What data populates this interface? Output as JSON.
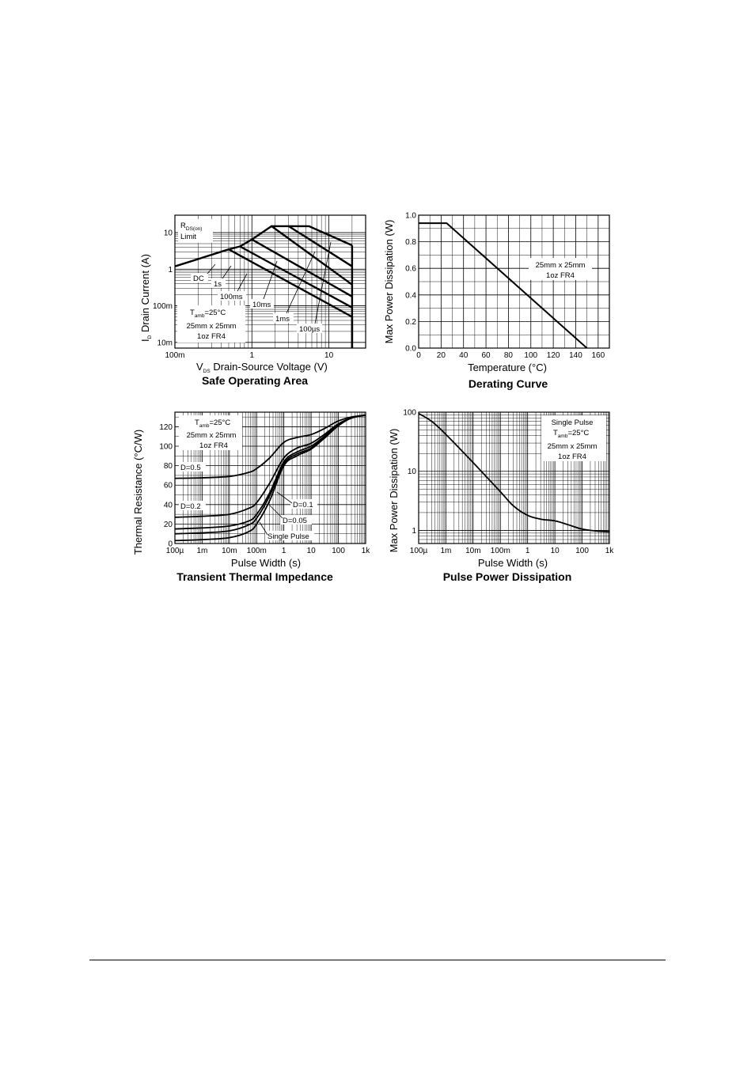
{
  "chart_data": [
    {
      "id": "soa",
      "type": "line",
      "title": "Safe Operating Area",
      "xlabel": {
        "pre": "V",
        "sub": "DS",
        "post": " Drain-Source Voltage (V)"
      },
      "ylabel": {
        "pre": "I",
        "sub": "D",
        "post": " Drain Current (A)"
      },
      "x_scale": "log",
      "y_scale": "log",
      "xlim": [
        0.1,
        30
      ],
      "ylim": [
        0.007,
        30
      ],
      "x_tick_values": [
        0.1,
        1,
        10
      ],
      "x_tick_labels": [
        "100m",
        "1",
        "10"
      ],
      "y_tick_values": [
        0.01,
        0.1,
        1,
        10
      ],
      "y_tick_labels": [
        "10m",
        "100m",
        "1",
        "10"
      ],
      "grid": true,
      "series": [
        {
          "name": "DC",
          "x": [
            0.1,
            0.5,
            20,
            20
          ],
          "y": [
            1.2,
            3.5,
            0.05,
            0.007
          ]
        },
        {
          "name": "1s",
          "x": [
            0.5,
            0.7,
            20
          ],
          "y": [
            3.5,
            4.2,
            0.09
          ]
        },
        {
          "name": "100ms",
          "x": [
            0.7,
            1.0,
            20
          ],
          "y": [
            4.2,
            6.5,
            0.18
          ]
        },
        {
          "name": "10ms",
          "x": [
            1.0,
            1.8,
            20
          ],
          "y": [
            6.5,
            15,
            0.38
          ]
        },
        {
          "name": "1ms",
          "x": [
            1.8,
            3.0,
            20
          ],
          "y": [
            15,
            15,
            1.2
          ]
        },
        {
          "name": "100µs",
          "x": [
            3.0,
            5.5,
            20
          ],
          "y": [
            15,
            15,
            4.5
          ]
        },
        {
          "name": "",
          "x": [
            20,
            20
          ],
          "y": [
            4.5,
            0.007
          ]
        }
      ],
      "annotations": {
        "rds_label": {
          "pre": "R",
          "sub": "DS(on)"
        },
        "rds_limit": "Limit",
        "labels": [
          "DC",
          "1s",
          "100ms",
          "10ms",
          "1ms",
          "100µs"
        ],
        "cond1": {
          "pre": "T",
          "sub": "amb",
          "post": "=25°C"
        },
        "cond2": "25mm x 25mm",
        "cond3": "1oz FR4"
      }
    },
    {
      "id": "derating",
      "type": "line",
      "title": "Derating Curve",
      "xlabel": "Temperature (°C)",
      "ylabel": "Max Power Dissipation (W)",
      "xlim": [
        0,
        170
      ],
      "ylim": [
        0.0,
        1.0
      ],
      "x_tick_values": [
        0,
        20,
        40,
        60,
        80,
        100,
        120,
        140,
        160
      ],
      "x_tick_labels": [
        "0",
        "20",
        "40",
        "60",
        "80",
        "100",
        "120",
        "140",
        "160"
      ],
      "y_tick_values": [
        0.0,
        0.2,
        0.4,
        0.6,
        0.8,
        1.0
      ],
      "y_tick_labels": [
        "0.0",
        "0.2",
        "0.4",
        "0.6",
        "0.8",
        "1.0"
      ],
      "grid": true,
      "series": [
        {
          "name": "",
          "x": [
            0,
            25,
            150
          ],
          "y": [
            0.94,
            0.94,
            0.0
          ]
        }
      ],
      "annotations": {
        "cond1": "25mm x 25mm",
        "cond2": "1oz FR4"
      }
    },
    {
      "id": "transient",
      "type": "line",
      "title": "Transient Thermal Impedance",
      "xlabel": "Pulse Width (s)",
      "ylabel": "Thermal Resistance (°C/W)",
      "x_scale": "log",
      "xlim": [
        0.0001,
        1000
      ],
      "ylim": [
        0,
        135
      ],
      "x_tick_values": [
        0.0001,
        0.001,
        0.01,
        0.1,
        1,
        10,
        100,
        1000
      ],
      "x_tick_labels": [
        "100µ",
        "1m",
        "10m",
        "100m",
        "1",
        "10",
        "100",
        "1k"
      ],
      "y_tick_values": [
        0,
        20,
        40,
        60,
        80,
        100,
        120
      ],
      "y_tick_labels": [
        "0",
        "20",
        "40",
        "60",
        "80",
        "100",
        "120"
      ],
      "grid": true,
      "x_shared": [
        0.0001,
        0.001,
        0.01,
        0.05,
        0.1,
        0.3,
        1,
        3,
        10,
        30,
        100,
        300,
        1000
      ],
      "series": [
        {
          "name": "D=0.5",
          "values": [
            67,
            67.5,
            69,
            73,
            77,
            88,
            104,
            109,
            112,
            118,
            126,
            130,
            132
          ]
        },
        {
          "name": "D=0.2",
          "values": [
            27,
            28,
            30,
            36,
            42,
            62,
            88,
            98,
            103,
            112,
            123,
            129,
            132
          ]
        },
        {
          "name": "D=0.1",
          "values": [
            15,
            16,
            18,
            23,
            30,
            52,
            84,
            94,
            100,
            110,
            122,
            129,
            132
          ]
        },
        {
          "name": "D=0.05",
          "values": [
            10,
            11,
            13,
            19,
            26,
            49,
            82,
            92,
            98,
            109,
            122,
            129,
            132
          ]
        },
        {
          "name": "Single Pulse",
          "values": [
            3,
            4,
            6,
            12,
            20,
            44,
            80,
            90,
            97,
            108,
            121,
            129,
            132
          ]
        }
      ],
      "annotations": {
        "cond1": {
          "pre": "T",
          "sub": "amb",
          "post": "=25°C"
        },
        "cond2": "25mm x 25mm",
        "cond3": "1oz FR4",
        "labels": [
          "D=0.5",
          "D=0.2",
          "D=0.1",
          "D=0.05",
          "Single Pulse"
        ]
      }
    },
    {
      "id": "pulse",
      "type": "line",
      "title": "Pulse Power Dissipation",
      "xlabel": "Pulse Width (s)",
      "ylabel": "Max Power Dissipation (W)",
      "x_scale": "log",
      "y_scale": "log",
      "xlim": [
        0.0001,
        1000
      ],
      "ylim": [
        0.6,
        100
      ],
      "x_tick_values": [
        0.0001,
        0.001,
        0.01,
        0.1,
        1,
        10,
        100,
        1000
      ],
      "x_tick_labels": [
        "100µ",
        "1m",
        "10m",
        "100m",
        "1",
        "10",
        "100",
        "1k"
      ],
      "y_tick_values": [
        1,
        10,
        100
      ],
      "y_tick_labels": [
        "1",
        "10",
        "100"
      ],
      "grid": true,
      "series": [
        {
          "name": "Single Pulse",
          "x": [
            0.0001,
            0.0003,
            0.001,
            0.01,
            0.1,
            0.3,
            1,
            3,
            10,
            30,
            100,
            300,
            1000
          ],
          "y": [
            95,
            70,
            42,
            14,
            4.5,
            2.6,
            1.8,
            1.55,
            1.45,
            1.25,
            1.05,
            0.98,
            0.95
          ]
        }
      ],
      "annotations": {
        "cond0": "Single Pulse",
        "cond1": {
          "pre": "T",
          "sub": "amb",
          "post": "=25°C"
        },
        "cond2": "25mm x 25mm",
        "cond3": "1oz FR4"
      }
    }
  ]
}
